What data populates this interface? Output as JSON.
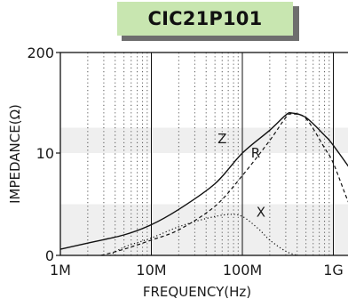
{
  "chart_data": {
    "type": "line",
    "title": "CIC21P101",
    "xlabel": "FREQUENCY(Hz)",
    "ylabel": "IMPEDANCE(Ω)",
    "xscale": "log",
    "yscale": "custom",
    "xlim": [
      1000000,
      2000000000
    ],
    "ylim": [
      0,
      200
    ],
    "x_ticks": [
      {
        "value": 1000000,
        "label": "1M"
      },
      {
        "value": 10000000,
        "label": "10M"
      },
      {
        "value": 100000000,
        "label": "100M"
      },
      {
        "value": 1000000000,
        "label": "1G"
      }
    ],
    "y_ticks": [
      {
        "value": 0,
        "label": "0"
      },
      {
        "value": 10,
        "label": "10"
      },
      {
        "value": 200,
        "label": "200"
      }
    ],
    "grid": true,
    "series": [
      {
        "name": "Z",
        "style": "solid",
        "x": [
          1000000,
          2000000,
          5000000,
          10000000,
          20000000,
          50000000,
          100000000,
          200000000,
          300000000,
          350000000,
          500000000,
          800000000,
          1000000000,
          2000000000
        ],
        "y": [
          0.6,
          1.2,
          2.0,
          3.0,
          4.5,
          7.0,
          10.0,
          14.5,
          17.5,
          17.9,
          17.0,
          13.5,
          11.5,
          7.0
        ]
      },
      {
        "name": "R",
        "style": "dashed",
        "x": [
          2800000,
          5000000,
          10000000,
          20000000,
          50000000,
          100000000,
          200000000,
          300000000,
          350000000,
          500000000,
          800000000,
          1000000000,
          1500000000,
          2000000000
        ],
        "y": [
          0.0,
          0.6,
          1.5,
          2.5,
          4.8,
          7.8,
          12.5,
          17.0,
          17.7,
          16.8,
          11.0,
          9.0,
          5.0,
          3.2
        ]
      },
      {
        "name": "X",
        "style": "dotted",
        "x": [
          3500000,
          5000000,
          10000000,
          20000000,
          40000000,
          70000000,
          100000000,
          150000000,
          200000000,
          300000000,
          400000000
        ],
        "y": [
          0.0,
          0.8,
          1.7,
          2.8,
          3.6,
          4.0,
          3.8,
          2.6,
          1.5,
          0.4,
          0.0
        ]
      }
    ],
    "annotations": [
      {
        "text": "Z",
        "x": 60000000,
        "y": 12.8
      },
      {
        "text": "R",
        "x": 140000000,
        "y": 10.0
      },
      {
        "text": "X",
        "x": 160000000,
        "y": 4.2
      }
    ],
    "colors": {
      "line": "#111111",
      "band": "#efefef",
      "grid": "#555555",
      "title_bg": "#c8e6b0",
      "title_shadow": "#6e6e6e"
    }
  }
}
